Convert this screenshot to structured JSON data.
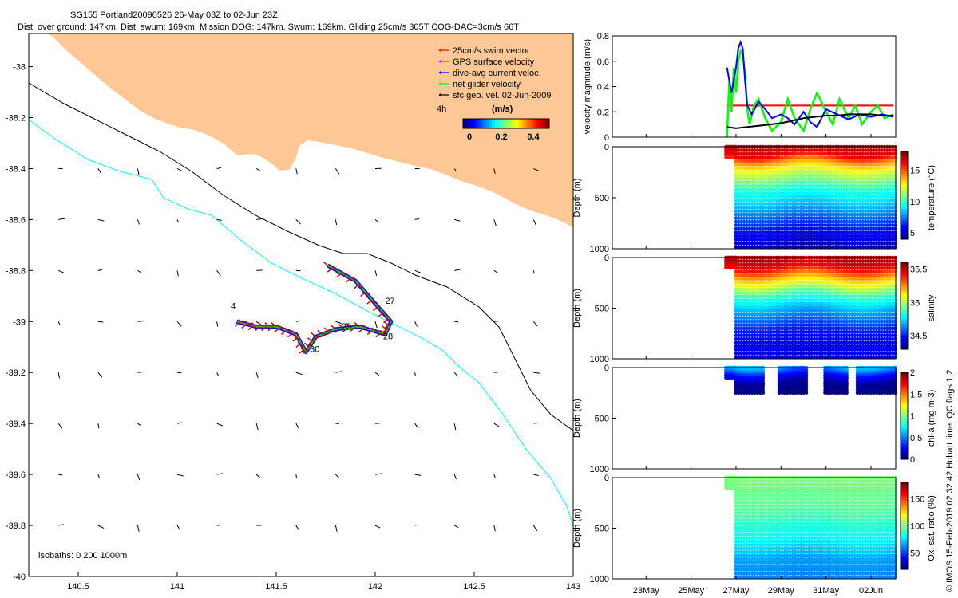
{
  "header": {
    "line1": "SG155 Portland20090526 26-May 03Z to 02-Jun 23Z.",
    "line2": "Dist. over ground: 147km. Dist. swum: 169km. Mission DOG: 147km. Swum: 169km. Gliding 25cm/s 305T COG-DAC=3cm/s 66T"
  },
  "map": {
    "colors": {
      "land": "#fdc895",
      "isobath_200": "#000000",
      "isobath_1000": "#00ffff",
      "swim": "#dd0000",
      "dac": "#0000ff",
      "net": "#00dd00"
    },
    "xticks": [
      "140.5",
      "141",
      "141.5",
      "142",
      "142.5",
      "143"
    ],
    "yticks": [
      "-38",
      "-38.2",
      "-38.4",
      "-38.6",
      "-38.8",
      "-39",
      "-39.2",
      "-39.4",
      "-39.6",
      "-39.8",
      "-40"
    ],
    "legend": [
      {
        "label": "25cm/s swim vector",
        "color": "#ff0000"
      },
      {
        "label": "GPS surface velocity",
        "color": "#ff00ff"
      },
      {
        "label": "dive-avg current veloc.",
        "color": "#0000ff"
      },
      {
        "label": "net glider velocity",
        "color": "#00ff00"
      },
      {
        "label": "sfc geo. vel. 02-Jun-2009",
        "color": "#000000"
      }
    ],
    "colorbar_title": "(m/s)",
    "colorbar_ticks": [
      "0",
      "0.2",
      "0.4"
    ],
    "interval_label": "4h",
    "isobaths_label": "isobaths: 0   200   1000m",
    "day_labels": [
      {
        "text": "4",
        "lon": 141.27,
        "lat": -38.95
      },
      {
        "text": "27",
        "lon": 142.05,
        "lat": -38.93
      },
      {
        "text": "28",
        "lon": 142.04,
        "lat": -39.07
      },
      {
        "text": "29",
        "lon": 141.83,
        "lat": -39.03
      },
      {
        "text": "30",
        "lon": 141.67,
        "lat": -39.12
      }
    ]
  },
  "chart_data": [
    {
      "type": "line",
      "ylabel": "velocity magnitude (m/s)",
      "ylim": [
        0,
        0.8
      ],
      "yticks": [
        "0",
        "0.2",
        "0.4",
        "0.6",
        "0.8"
      ],
      "series": [
        {
          "color": "#ff0000",
          "x": [
            26.6,
            27.0,
            27.5,
            28.5,
            29.5,
            30.5,
            31.5,
            32.5,
            33.5,
            34.0
          ],
          "y": [
            0.25,
            0.25,
            0.25,
            0.25,
            0.25,
            0.25,
            0.25,
            0.25,
            0.25,
            0.25
          ]
        },
        {
          "color": "#00ff00",
          "x": [
            26.6,
            26.7,
            26.8,
            26.9,
            27.0,
            27.1,
            27.2,
            27.3,
            27.4,
            27.5,
            27.6,
            27.8,
            28.0,
            28.3,
            28.6,
            29.0,
            29.3,
            29.6,
            30.0,
            30.3,
            30.6,
            31.0,
            31.3,
            31.6,
            32.0,
            32.3,
            32.6,
            33.0,
            33.3,
            33.6,
            34.0
          ],
          "y": [
            0.0,
            0.45,
            0.2,
            0.55,
            0.35,
            0.6,
            0.68,
            0.65,
            0.5,
            0.22,
            0.1,
            0.25,
            0.3,
            0.15,
            0.05,
            0.12,
            0.3,
            0.15,
            0.05,
            0.22,
            0.35,
            0.2,
            0.1,
            0.3,
            0.15,
            0.25,
            0.1,
            0.2,
            0.25,
            0.15,
            0.18
          ]
        },
        {
          "color": "#0000ff",
          "x": [
            26.6,
            26.8,
            27.0,
            27.1,
            27.2,
            27.3,
            27.4,
            27.5,
            27.7,
            28.0,
            28.3,
            28.6,
            29.0,
            29.3,
            29.6,
            30.0,
            30.3,
            30.6,
            31.0,
            31.5,
            32.0,
            32.5,
            33.0,
            33.5,
            34.0
          ],
          "y": [
            0.55,
            0.35,
            0.55,
            0.7,
            0.75,
            0.7,
            0.45,
            0.25,
            0.18,
            0.28,
            0.22,
            0.15,
            0.18,
            0.15,
            0.1,
            0.2,
            0.12,
            0.08,
            0.22,
            0.18,
            0.14,
            0.18,
            0.16,
            0.18,
            0.16
          ]
        },
        {
          "color": "#000000",
          "x": [
            26.6,
            27.0,
            27.5,
            28.0,
            28.5,
            29.0,
            29.5,
            30.0,
            30.5,
            31.0,
            31.5,
            32.0,
            32.5,
            33.0,
            33.5,
            34.0
          ],
          "y": [
            0.08,
            0.07,
            0.08,
            0.09,
            0.1,
            0.11,
            0.13,
            0.15,
            0.16,
            0.17,
            0.17,
            0.18,
            0.18,
            0.18,
            0.17,
            0.17
          ]
        }
      ]
    },
    {
      "type": "heatmap",
      "name": "temperature",
      "ylabel": "Depth (m)",
      "colorbar_label": "temperature (°C)",
      "colorbar_ticks": [
        "5",
        "10",
        "15"
      ],
      "clim": [
        4,
        18
      ],
      "ylim": [
        0,
        1000
      ],
      "yticks": [
        "0",
        "500",
        "1000"
      ],
      "profile": [
        {
          "depth": 0,
          "value": 17
        },
        {
          "depth": 80,
          "value": 16.5
        },
        {
          "depth": 150,
          "value": 14
        },
        {
          "depth": 250,
          "value": 12
        },
        {
          "depth": 400,
          "value": 10
        },
        {
          "depth": 600,
          "value": 8
        },
        {
          "depth": 800,
          "value": 6
        },
        {
          "depth": 1000,
          "value": 4.5
        }
      ]
    },
    {
      "type": "heatmap",
      "name": "salinity",
      "ylabel": "Depth (m)",
      "colorbar_label": "salinity",
      "colorbar_ticks": [
        "34.5",
        "35",
        "35.5"
      ],
      "clim": [
        34.3,
        35.6
      ],
      "ylim": [
        0,
        1000
      ],
      "yticks": [
        "0",
        "500",
        "1000"
      ],
      "profile": [
        {
          "depth": 0,
          "value": 35.55
        },
        {
          "depth": 100,
          "value": 35.45
        },
        {
          "depth": 200,
          "value": 35.2
        },
        {
          "depth": 350,
          "value": 34.9
        },
        {
          "depth": 500,
          "value": 34.7
        },
        {
          "depth": 700,
          "value": 34.5
        },
        {
          "depth": 1000,
          "value": 34.4
        }
      ]
    },
    {
      "type": "heatmap",
      "name": "chl-a",
      "ylabel": "Depth (m)",
      "colorbar_label": "chl-a (mg m-3)",
      "colorbar_ticks": [
        "0",
        "0.5",
        "1",
        "1.5",
        "2"
      ],
      "clim": [
        0,
        2
      ],
      "ylim": [
        0,
        1000
      ],
      "yticks": [
        "0",
        "500",
        "1000"
      ],
      "profile": [
        {
          "depth": 0,
          "value": 0.6
        },
        {
          "depth": 60,
          "value": 0.3
        },
        {
          "depth": 150,
          "value": 0.05
        },
        {
          "depth": 250,
          "value": 0.0
        }
      ]
    },
    {
      "type": "heatmap",
      "name": "oxygen",
      "ylabel": "Depth (m)",
      "colorbar_label": "Ox. sat. ratio (%)",
      "colorbar_ticks": [
        "50",
        "100",
        "150"
      ],
      "clim": [
        20,
        180
      ],
      "ylim": [
        0,
        1000
      ],
      "yticks": [
        "0",
        "500",
        "1000"
      ],
      "profile": [
        {
          "depth": 0,
          "value": 100
        },
        {
          "depth": 300,
          "value": 95
        },
        {
          "depth": 600,
          "value": 80
        },
        {
          "depth": 800,
          "value": 65
        },
        {
          "depth": 1000,
          "value": 60
        }
      ]
    }
  ],
  "time_axis": {
    "labels": [
      "23May",
      "25May",
      "27May",
      "29May",
      "31May",
      "02Jun"
    ],
    "start_day": 21.5,
    "end_day": 34.1,
    "data_start_day": 26.55,
    "profile_start_day": 27.0
  },
  "credit": "© IMOS 15-Feb-2019 02:32:42 Hobart time. QC flags 1  2"
}
